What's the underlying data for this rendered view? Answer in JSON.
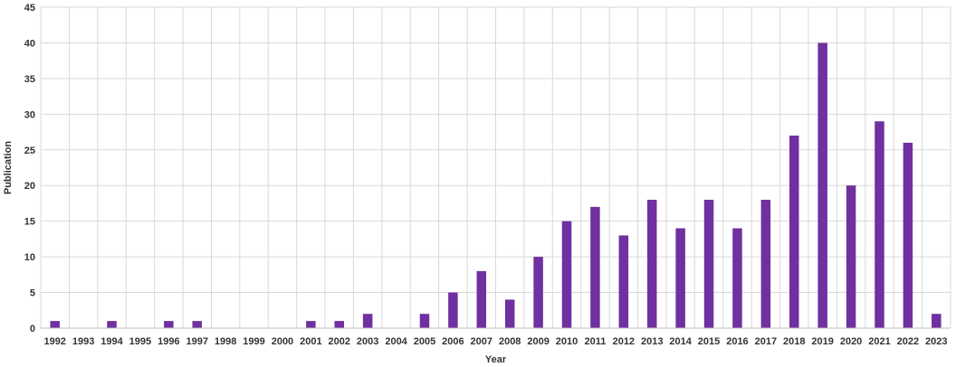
{
  "chart_data": {
    "type": "bar",
    "title": "",
    "xlabel": "Year",
    "ylabel": "Publication",
    "ylim": [
      0,
      45
    ],
    "yticks": [
      0,
      5,
      10,
      15,
      20,
      25,
      30,
      35,
      40,
      45
    ],
    "grid": "both",
    "legend": "none",
    "bar_color": "#7030A0",
    "grid_color": "#D9D9D9",
    "categories": [
      "1992",
      "1993",
      "1994",
      "1995",
      "1996",
      "1997",
      "1998",
      "1999",
      "2000",
      "2001",
      "2002",
      "2003",
      "2004",
      "2005",
      "2006",
      "2007",
      "2008",
      "2009",
      "2010",
      "2011",
      "2012",
      "2013",
      "2014",
      "2015",
      "2016",
      "2017",
      "2018",
      "2019",
      "2020",
      "2021",
      "2022",
      "2023"
    ],
    "values": [
      1,
      0,
      1,
      0,
      1,
      1,
      0,
      0,
      0,
      1,
      1,
      2,
      0,
      2,
      5,
      8,
      4,
      10,
      15,
      17,
      13,
      18,
      14,
      18,
      14,
      18,
      27,
      40,
      20,
      29,
      26,
      2
    ]
  }
}
